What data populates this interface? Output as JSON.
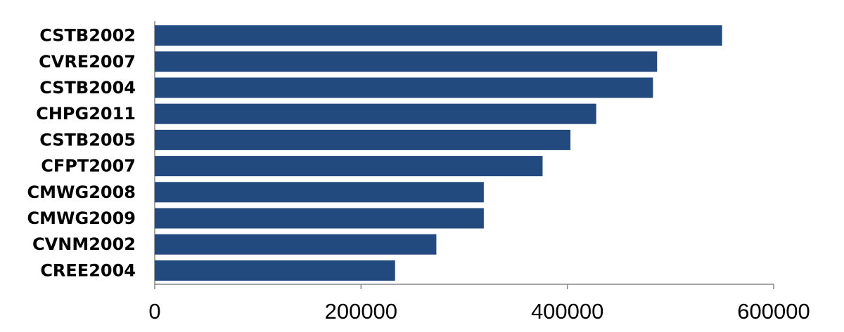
{
  "chart_data": {
    "type": "barh",
    "categories": [
      "CSTB2002",
      "CVRE2007",
      "CSTB2004",
      "CHPG2011",
      "CSTB2005",
      "CFPT2007",
      "CMWG2008",
      "CMWG2009",
      "CVNM2002",
      "CREE2004"
    ],
    "values": [
      550000,
      487000,
      483000,
      428000,
      403000,
      376000,
      319000,
      319000,
      273000,
      233000
    ],
    "color": "#234a7e",
    "xlim": [
      0,
      600000
    ],
    "xticks": [
      0,
      200000,
      400000,
      600000
    ],
    "grid": false
  }
}
